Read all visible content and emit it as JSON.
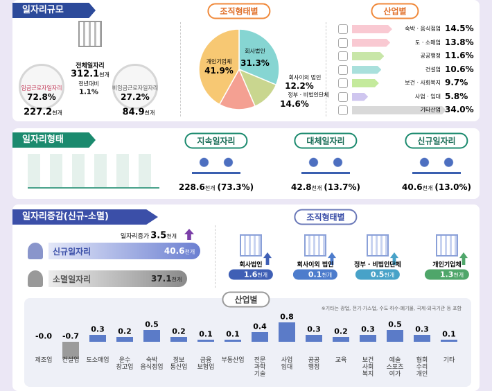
{
  "panel1": {
    "title": "일자리규모",
    "unit": "천개",
    "total": {
      "label": "전체일자리",
      "value": 312.1
    },
    "yoy": {
      "label": "전년대비",
      "value_label": "1.1%"
    },
    "wage": {
      "label": "임금근로자일자리",
      "share_label": "72.8%",
      "value": 227.2
    },
    "nonwage": {
      "label": "비임금근로자일자리",
      "share_label": "27.2%",
      "value": 84.9
    },
    "org": {
      "title": "조직형태별",
      "type": "pie",
      "categories": [
        "회사법인",
        "회사이외 법인",
        "정부 · 비법인단체",
        "개인기업체"
      ],
      "values": [
        31.3,
        12.2,
        14.6,
        41.9
      ],
      "value_labels": [
        "31.3%",
        "12.2%",
        "14.6%",
        "41.9%"
      ],
      "colors": [
        "#86d5d2",
        "#c9d68f",
        "#f4a092",
        "#f7c873"
      ]
    },
    "industry": {
      "title": "산업별",
      "type": "hbar",
      "categories": [
        "숙박 · 음식점업",
        "도 · 소매업",
        "공공행정",
        "건설업",
        "보건 · 사회복지",
        "사업 · 임대",
        "기타산업"
      ],
      "values": [
        14.5,
        13.8,
        11.6,
        10.6,
        9.7,
        5.8,
        34.0
      ],
      "value_labels": [
        "14.5%",
        "13.8%",
        "11.6%",
        "10.6%",
        "9.7%",
        "5.8%",
        "34.0%"
      ],
      "colors": [
        "#f9c9d2",
        "#f9c9d2",
        "#c8e6a8",
        "#a9e0dc",
        "#c4ea9c",
        "#cfc6ef",
        "#d9d9d9"
      ]
    }
  },
  "panel2": {
    "title": "일자리형태",
    "unit": "천개",
    "items": [
      {
        "title": "지속일자리",
        "value": 228.6,
        "share_label": "(73.3%)"
      },
      {
        "title": "대체일자리",
        "value": 42.8,
        "share_label": "(13.7%)"
      },
      {
        "title": "신규일자리",
        "value": 40.6,
        "share_label": "(13.0%)"
      }
    ]
  },
  "panel3": {
    "title": "일자리증감(신규-소멸)",
    "unit": "천개",
    "increase": {
      "label": "일자리증가",
      "value": 3.5
    },
    "new": {
      "label": "신규일자리",
      "value": 40.6
    },
    "lost": {
      "label": "소멸일자리",
      "value": 37.1
    },
    "org": {
      "title": "조직형태별",
      "categories": [
        "회사법인",
        "회사이외 법인",
        "정부 · 비법인단체",
        "개인기업체"
      ],
      "values": [
        1.6,
        0.1,
        0.5,
        1.3
      ],
      "colors": [
        "#3f5fb5",
        "#4d7ccc",
        "#48a2c8",
        "#4fa66a"
      ]
    },
    "industry": {
      "title": "산업별",
      "type": "bar",
      "note": "※기타는 광업, 전기·가스업, 수도·하수·폐기물, 국제·외국기관 등 포함",
      "color": "#5b7bc8",
      "negative_color": "#9b9b9b",
      "categories": [
        "제조업",
        "건설업",
        "도소매업",
        "운수\n창고업",
        "숙박\n음식점업",
        "정보\n통신업",
        "금융\n보험업",
        "부동산업",
        "전문\n과학\n기술",
        "사업\n임대",
        "공공\n행정",
        "교육",
        "보건\n사회\n복지",
        "예술\n스포츠\n여가",
        "협회\n수리\n개인",
        "기타"
      ],
      "values": [
        -0.0,
        -0.7,
        0.3,
        0.2,
        0.5,
        0.2,
        0.1,
        0.1,
        0.4,
        0.8,
        0.3,
        0.2,
        0.3,
        0.5,
        0.3,
        0.1
      ],
      "value_labels": [
        "-0.0",
        "-0.7",
        "0.3",
        "0.2",
        "0.5",
        "0.2",
        "0.1",
        "0.1",
        "0.4",
        "0.8",
        "0.3",
        "0.2",
        "0.3",
        "0.5",
        "0.3",
        "0.1"
      ]
    }
  }
}
